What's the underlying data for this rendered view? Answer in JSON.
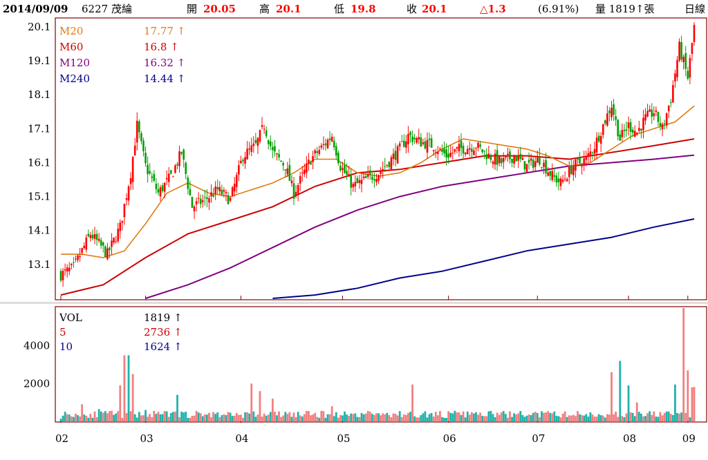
{
  "header": {
    "date": "2014/09/09",
    "stock": "6227 茂綸",
    "open_label": "開",
    "open_value": "20.05",
    "high_label": "高",
    "high_value": "20.1",
    "low_label": "低",
    "low_value": "19.8",
    "close_label": "收",
    "close_value": "20.1",
    "change_value": "△1.3",
    "change_pct": "(6.91%)",
    "volume_text": "量 1819↑張",
    "period": "日線"
  },
  "colors": {
    "up": "#ff0000",
    "down": "#00a000",
    "ma20": "#e07a10",
    "ma60": "#cc0000",
    "ma120": "#800080",
    "ma240": "#00008b",
    "vol_up": "#f08080",
    "vol_down": "#20b2aa",
    "frame": "#800000",
    "grid": "#bbbbbb"
  },
  "chart_data": [
    {
      "type": "candlestick",
      "yticks": [
        20.1,
        19.1,
        18.1,
        17.1,
        16.1,
        15.1,
        14.1,
        13.1
      ],
      "ylim": [
        12.1,
        20.2
      ],
      "xticks": [
        "02",
        "03",
        "04",
        "05",
        "06",
        "07",
        "08",
        "09"
      ],
      "legend": [
        {
          "name": "M20",
          "value": "17.77 ↑",
          "color_key": "ma20"
        },
        {
          "name": "M60",
          "value": "16.8 ↑",
          "color_key": "ma60"
        },
        {
          "name": "M120",
          "value": "16.32 ↑",
          "color_key": "ma120"
        },
        {
          "name": "M240",
          "value": "14.44 ↑",
          "color_key": "ma240"
        }
      ],
      "trend_points": [
        [
          0,
          12.8
        ],
        [
          6,
          13.0
        ],
        [
          14,
          14.0
        ],
        [
          22,
          13.4
        ],
        [
          28,
          14.2
        ],
        [
          33,
          15.8
        ],
        [
          36,
          17.2
        ],
        [
          40,
          16.0
        ],
        [
          46,
          15.2
        ],
        [
          52,
          15.7
        ],
        [
          57,
          16.4
        ],
        [
          62,
          14.8
        ],
        [
          68,
          15.0
        ],
        [
          74,
          15.3
        ],
        [
          80,
          15.0
        ],
        [
          86,
          16.3
        ],
        [
          92,
          16.6
        ],
        [
          96,
          17.2
        ],
        [
          100,
          16.4
        ],
        [
          106,
          16.0
        ],
        [
          110,
          15.2
        ],
        [
          114,
          15.7
        ],
        [
          118,
          16.2
        ],
        [
          124,
          16.6
        ],
        [
          128,
          16.9
        ],
        [
          132,
          16.0
        ],
        [
          138,
          15.4
        ],
        [
          144,
          15.6
        ],
        [
          150,
          15.8
        ],
        [
          156,
          16.2
        ],
        [
          160,
          16.5
        ],
        [
          164,
          16.9
        ],
        [
          170,
          16.7
        ],
        [
          176,
          16.6
        ],
        [
          182,
          16.3
        ],
        [
          188,
          16.5
        ],
        [
          196,
          16.6
        ],
        [
          202,
          16.3
        ],
        [
          208,
          16.1
        ],
        [
          214,
          16.3
        ],
        [
          220,
          16.0
        ],
        [
          226,
          16.2
        ],
        [
          232,
          15.7
        ],
        [
          236,
          15.5
        ],
        [
          242,
          16.0
        ],
        [
          248,
          16.2
        ],
        [
          252,
          16.6
        ],
        [
          256,
          17.2
        ],
        [
          260,
          17.8
        ],
        [
          264,
          16.8
        ],
        [
          268,
          17.2
        ],
        [
          272,
          17.0
        ],
        [
          276,
          17.4
        ],
        [
          280,
          17.6
        ],
        [
          284,
          17.1
        ],
        [
          288,
          18.0
        ],
        [
          292,
          19.5
        ],
        [
          296,
          18.6
        ],
        [
          299,
          20.1
        ]
      ],
      "ma20": [
        [
          0,
          13.4
        ],
        [
          10,
          13.4
        ],
        [
          20,
          13.3
        ],
        [
          30,
          13.5
        ],
        [
          40,
          14.3
        ],
        [
          50,
          15.2
        ],
        [
          60,
          15.5
        ],
        [
          70,
          15.2
        ],
        [
          80,
          15.1
        ],
        [
          90,
          15.3
        ],
        [
          100,
          15.5
        ],
        [
          110,
          15.8
        ],
        [
          120,
          16.2
        ],
        [
          130,
          16.2
        ],
        [
          140,
          15.8
        ],
        [
          150,
          15.7
        ],
        [
          160,
          15.8
        ],
        [
          170,
          16.1
        ],
        [
          180,
          16.5
        ],
        [
          190,
          16.8
        ],
        [
          200,
          16.7
        ],
        [
          210,
          16.6
        ],
        [
          220,
          16.5
        ],
        [
          230,
          16.3
        ],
        [
          240,
          16.0
        ],
        [
          250,
          16.1
        ],
        [
          260,
          16.5
        ],
        [
          270,
          16.9
        ],
        [
          280,
          17.1
        ],
        [
          290,
          17.3
        ],
        [
          299,
          17.77
        ]
      ],
      "ma60": [
        [
          0,
          12.2
        ],
        [
          20,
          12.5
        ],
        [
          40,
          13.3
        ],
        [
          60,
          14.0
        ],
        [
          80,
          14.4
        ],
        [
          100,
          14.8
        ],
        [
          120,
          15.4
        ],
        [
          140,
          15.8
        ],
        [
          160,
          15.9
        ],
        [
          180,
          16.1
        ],
        [
          200,
          16.3
        ],
        [
          220,
          16.3
        ],
        [
          240,
          16.2
        ],
        [
          260,
          16.4
        ],
        [
          280,
          16.6
        ],
        [
          299,
          16.8
        ]
      ],
      "ma120": [
        [
          40,
          12.0
        ],
        [
          60,
          12.5
        ],
        [
          80,
          13.0
        ],
        [
          100,
          13.6
        ],
        [
          120,
          14.2
        ],
        [
          140,
          14.7
        ],
        [
          160,
          15.1
        ],
        [
          180,
          15.4
        ],
        [
          200,
          15.6
        ],
        [
          220,
          15.8
        ],
        [
          240,
          16.0
        ],
        [
          260,
          16.1
        ],
        [
          280,
          16.2
        ],
        [
          299,
          16.32
        ]
      ],
      "ma240": [
        [
          100,
          12.0
        ],
        [
          120,
          12.2
        ],
        [
          140,
          12.4
        ],
        [
          160,
          12.7
        ],
        [
          180,
          12.9
        ],
        [
          200,
          13.2
        ],
        [
          220,
          13.5
        ],
        [
          240,
          13.7
        ],
        [
          260,
          13.9
        ],
        [
          280,
          14.2
        ],
        [
          299,
          14.44
        ]
      ]
    },
    {
      "type": "bar",
      "title": "VOL",
      "yticks": [
        4000,
        2000
      ],
      "ylim": [
        0,
        6000
      ],
      "legend": [
        {
          "name": "VOL",
          "value": "1819 ↑",
          "color_key": "text"
        },
        {
          "name": "5",
          "value": "2736 ↑",
          "color_key": "ma60"
        },
        {
          "name": "10",
          "value": "1624 ↑",
          "color_key": "ma240"
        }
      ],
      "spikes": [
        [
          0,
          120
        ],
        [
          10,
          900
        ],
        [
          18,
          650
        ],
        [
          22,
          420
        ],
        [
          28,
          1900
        ],
        [
          30,
          3500
        ],
        [
          32,
          3500
        ],
        [
          34,
          2500
        ],
        [
          40,
          600
        ],
        [
          55,
          1400
        ],
        [
          70,
          450
        ],
        [
          90,
          2000
        ],
        [
          94,
          1600
        ],
        [
          100,
          1200
        ],
        [
          128,
          800
        ],
        [
          145,
          550
        ],
        [
          166,
          1950
        ],
        [
          176,
          250
        ],
        [
          220,
          300
        ],
        [
          260,
          2600
        ],
        [
          264,
          3200
        ],
        [
          268,
          1900
        ],
        [
          272,
          1000
        ],
        [
          290,
          1950
        ],
        [
          294,
          6000
        ],
        [
          296,
          2700
        ],
        [
          298,
          1800
        ],
        [
          299,
          1819
        ]
      ]
    }
  ]
}
